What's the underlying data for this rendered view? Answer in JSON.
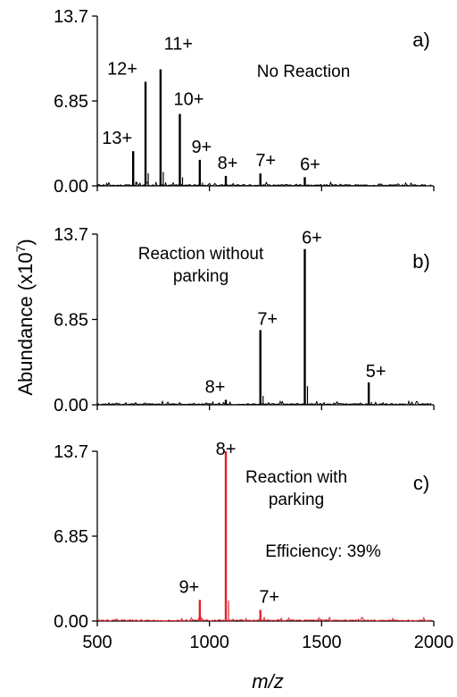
{
  "ylabel": "Abundance (x10",
  "ylabel_sup": "7",
  "ylabel_end": ")",
  "xlabel": "m/z",
  "colors": {
    "black": "#000000",
    "red": "#e0202a"
  },
  "chart_data": [
    {
      "type": "line",
      "panel": "a)",
      "note": [
        "No Reaction"
      ],
      "ylim": [
        0,
        13.7
      ],
      "xlim": [
        500,
        2000
      ],
      "yticks": [
        "0.00",
        "6.85",
        "13.7"
      ],
      "color": "black",
      "peaks": [
        {
          "x": 660,
          "y": 2.8,
          "label": "13+"
        },
        {
          "x": 715,
          "y": 8.4,
          "label": "12+"
        },
        {
          "x": 782,
          "y": 9.4,
          "label": "11+"
        },
        {
          "x": 868,
          "y": 5.8,
          "label": "10+"
        },
        {
          "x": 957,
          "y": 2.1,
          "label": "9+"
        },
        {
          "x": 1073,
          "y": 0.8,
          "label": "8+"
        },
        {
          "x": 1227,
          "y": 1.0,
          "label": "7+"
        },
        {
          "x": 1425,
          "y": 0.7,
          "label": "6+"
        }
      ]
    },
    {
      "type": "line",
      "panel": "b)",
      "note": [
        "Reaction without",
        "parking"
      ],
      "ylim": [
        0,
        13.7
      ],
      "xlim": [
        500,
        2000
      ],
      "yticks": [
        "0.00",
        "6.85",
        "13.7"
      ],
      "color": "black",
      "peaks": [
        {
          "x": 1073,
          "y": 0.4,
          "label": "8+"
        },
        {
          "x": 1227,
          "y": 6.0,
          "label": "7+"
        },
        {
          "x": 1425,
          "y": 12.5,
          "label": "6+"
        },
        {
          "x": 1710,
          "y": 1.8,
          "label": "5+"
        }
      ]
    },
    {
      "type": "line",
      "panel": "c)",
      "note": [
        "Reaction with",
        "parking"
      ],
      "highlight": "Efficiency: 39%",
      "ylim": [
        0,
        13.7
      ],
      "xlim": [
        500,
        2000
      ],
      "xticks": [
        "500",
        "1000",
        "1500",
        "2000"
      ],
      "yticks": [
        "0.00",
        "6.85",
        "13.7"
      ],
      "color": "red",
      "peaks": [
        {
          "x": 957,
          "y": 1.7,
          "label": "9+"
        },
        {
          "x": 1073,
          "y": 13.7,
          "label": "8+"
        },
        {
          "x": 1227,
          "y": 0.9,
          "label": "7+"
        }
      ]
    }
  ]
}
